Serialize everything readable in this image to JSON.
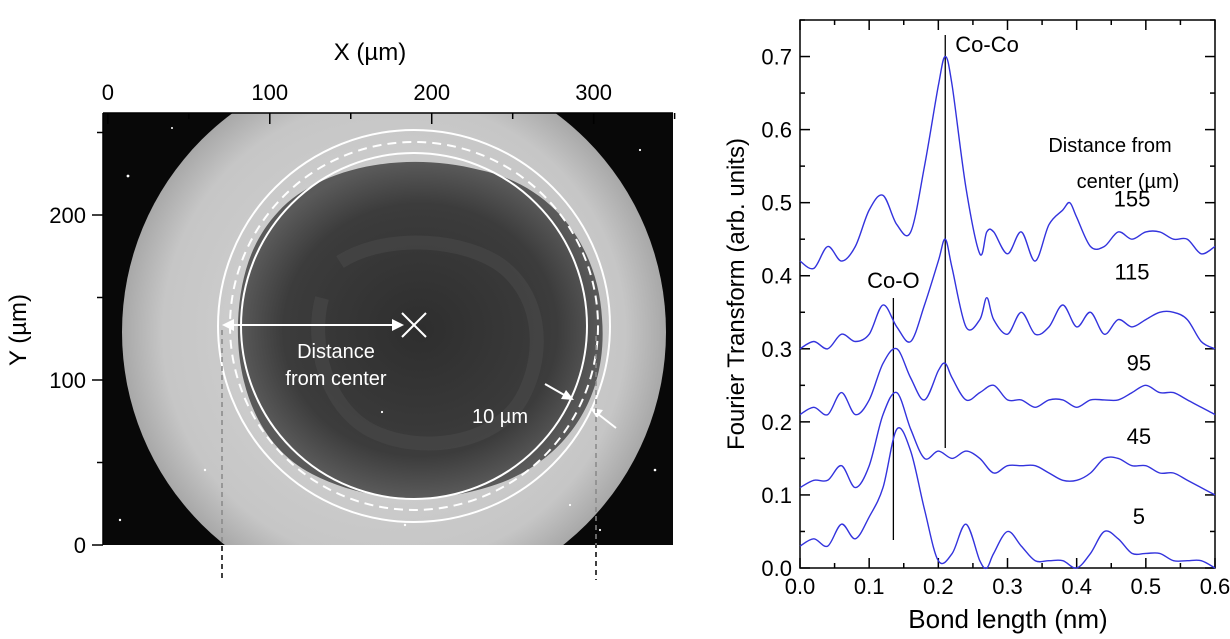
{
  "left_panel": {
    "x_axis_label": "X (µm)",
    "y_axis_label": "Y (µm)",
    "x_ticks": [
      "0",
      "100",
      "200",
      "300"
    ],
    "y_ticks": [
      "0",
      "100",
      "200"
    ],
    "annotation_distance": "Distance\nfrom center",
    "annotation_ring_width": "10 µm"
  },
  "chart_data": {
    "type": "line",
    "xlabel": "Bond length (nm)",
    "ylabel": "Fourier Transform (arb. units)",
    "xlim": [
      0.0,
      0.6
    ],
    "ylim": [
      0.0,
      0.75
    ],
    "x_ticks": [
      "0.0",
      "0.1",
      "0.2",
      "0.3",
      "0.4",
      "0.5",
      "0.6"
    ],
    "y_ticks": [
      "0.0",
      "0.1",
      "0.2",
      "0.3",
      "0.4",
      "0.5",
      "0.6",
      "0.7"
    ],
    "line_color": "#3333dd",
    "legend_title": "Distance from center (µm)",
    "annotations": [
      {
        "text": "Co-Co",
        "x": 0.21
      },
      {
        "text": "Co-O",
        "x": 0.135
      }
    ],
    "series": [
      {
        "name": "155",
        "x": [
          0.0,
          0.02,
          0.04,
          0.06,
          0.08,
          0.1,
          0.12,
          0.14,
          0.16,
          0.18,
          0.2,
          0.21,
          0.22,
          0.24,
          0.26,
          0.27,
          0.28,
          0.3,
          0.32,
          0.34,
          0.36,
          0.38,
          0.39,
          0.4,
          0.42,
          0.44,
          0.46,
          0.48,
          0.5,
          0.52,
          0.54,
          0.56,
          0.58,
          0.6
        ],
        "y": [
          0.42,
          0.41,
          0.44,
          0.42,
          0.44,
          0.49,
          0.51,
          0.47,
          0.46,
          0.55,
          0.66,
          0.7,
          0.66,
          0.52,
          0.43,
          0.46,
          0.46,
          0.43,
          0.46,
          0.42,
          0.47,
          0.49,
          0.5,
          0.48,
          0.44,
          0.44,
          0.46,
          0.45,
          0.46,
          0.46,
          0.45,
          0.45,
          0.43,
          0.44
        ]
      },
      {
        "name": "115",
        "x": [
          0.0,
          0.02,
          0.04,
          0.06,
          0.08,
          0.1,
          0.12,
          0.14,
          0.16,
          0.18,
          0.2,
          0.21,
          0.22,
          0.24,
          0.26,
          0.27,
          0.28,
          0.3,
          0.32,
          0.34,
          0.36,
          0.38,
          0.4,
          0.42,
          0.44,
          0.46,
          0.48,
          0.5,
          0.52,
          0.54,
          0.56,
          0.58,
          0.6
        ],
        "y": [
          0.3,
          0.31,
          0.3,
          0.32,
          0.31,
          0.32,
          0.36,
          0.33,
          0.31,
          0.36,
          0.42,
          0.45,
          0.41,
          0.33,
          0.34,
          0.37,
          0.34,
          0.32,
          0.35,
          0.32,
          0.33,
          0.36,
          0.33,
          0.35,
          0.32,
          0.34,
          0.33,
          0.34,
          0.35,
          0.35,
          0.34,
          0.31,
          0.3
        ]
      },
      {
        "name": "95",
        "x": [
          0.0,
          0.02,
          0.04,
          0.06,
          0.08,
          0.1,
          0.12,
          0.14,
          0.16,
          0.18,
          0.2,
          0.21,
          0.22,
          0.24,
          0.26,
          0.28,
          0.3,
          0.32,
          0.34,
          0.36,
          0.38,
          0.4,
          0.42,
          0.44,
          0.46,
          0.48,
          0.5,
          0.52,
          0.54,
          0.56,
          0.58,
          0.6
        ],
        "y": [
          0.21,
          0.22,
          0.21,
          0.24,
          0.21,
          0.23,
          0.28,
          0.3,
          0.26,
          0.23,
          0.27,
          0.28,
          0.26,
          0.23,
          0.24,
          0.25,
          0.23,
          0.23,
          0.22,
          0.23,
          0.23,
          0.22,
          0.23,
          0.23,
          0.23,
          0.24,
          0.25,
          0.24,
          0.24,
          0.23,
          0.22,
          0.21
        ]
      },
      {
        "name": "45",
        "x": [
          0.0,
          0.02,
          0.04,
          0.06,
          0.08,
          0.1,
          0.12,
          0.14,
          0.16,
          0.18,
          0.2,
          0.22,
          0.24,
          0.26,
          0.28,
          0.3,
          0.32,
          0.34,
          0.36,
          0.38,
          0.4,
          0.42,
          0.44,
          0.46,
          0.48,
          0.5,
          0.52,
          0.54,
          0.56,
          0.58,
          0.6
        ],
        "y": [
          0.11,
          0.12,
          0.12,
          0.14,
          0.11,
          0.14,
          0.21,
          0.24,
          0.19,
          0.15,
          0.16,
          0.15,
          0.16,
          0.15,
          0.13,
          0.14,
          0.14,
          0.14,
          0.13,
          0.12,
          0.12,
          0.13,
          0.15,
          0.15,
          0.14,
          0.14,
          0.13,
          0.13,
          0.12,
          0.11,
          0.1
        ]
      },
      {
        "name": "5",
        "x": [
          0.0,
          0.02,
          0.04,
          0.06,
          0.08,
          0.1,
          0.12,
          0.14,
          0.16,
          0.18,
          0.2,
          0.22,
          0.24,
          0.26,
          0.27,
          0.28,
          0.3,
          0.32,
          0.34,
          0.36,
          0.38,
          0.4,
          0.42,
          0.44,
          0.46,
          0.48,
          0.5,
          0.52,
          0.54,
          0.56,
          0.58,
          0.6
        ],
        "y": [
          0.03,
          0.04,
          0.03,
          0.06,
          0.04,
          0.07,
          0.11,
          0.19,
          0.16,
          0.08,
          0.01,
          0.02,
          0.06,
          0.01,
          0.0,
          0.02,
          0.05,
          0.03,
          0.01,
          0.01,
          0.01,
          0.0,
          0.02,
          0.05,
          0.04,
          0.02,
          0.02,
          0.02,
          0.01,
          0.01,
          0.01,
          0.0
        ]
      }
    ],
    "grid": false
  }
}
